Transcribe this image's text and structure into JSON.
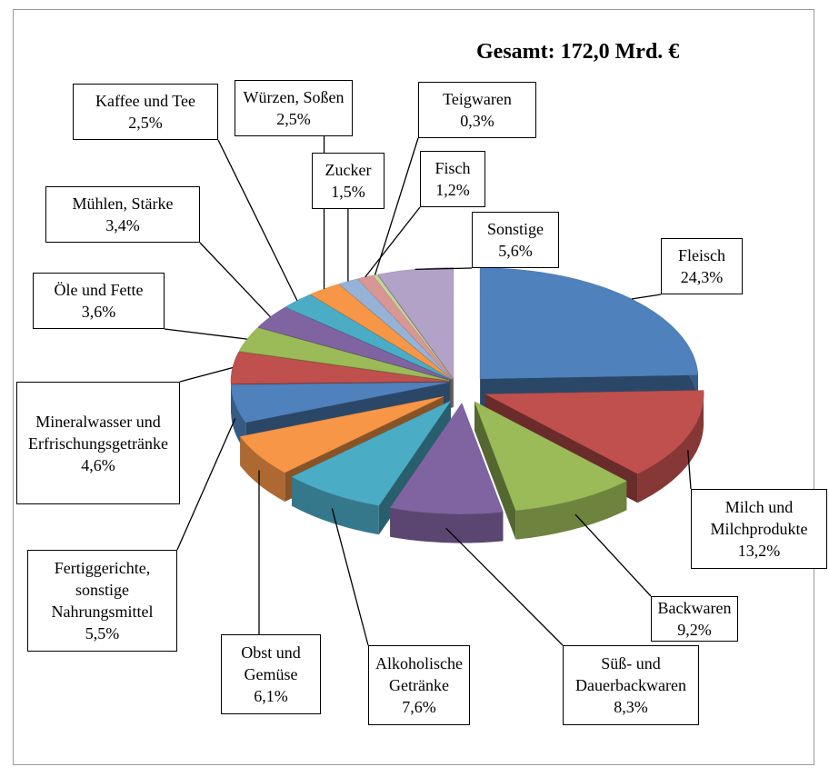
{
  "chart_data": {
    "type": "pie",
    "title": "Gesamt: 172,0 Mrd. €",
    "categories": [
      "Fleisch",
      "Milch und Milchprodukte",
      "Backwaren",
      "Süß- und Dauerbackwaren",
      "Alkoholische Getränke",
      "Obst und Gemüse",
      "Fertiggerichte, sonstige Nahrungsmittel",
      "Mineralwasser und Erfrischungsgetränke",
      "Öle und Fette",
      "Mühlen, Stärke",
      "Kaffee und Tee",
      "Würzen, Soßen",
      "Zucker",
      "Fisch",
      "Teigwaren",
      "Sonstige"
    ],
    "values": [
      24.3,
      13.2,
      9.2,
      8.3,
      7.6,
      6.1,
      5.5,
      4.6,
      3.6,
      3.4,
      2.5,
      2.5,
      1.5,
      1.2,
      0.3,
      5.6
    ],
    "value_labels": [
      "24,3%",
      "13,2%",
      "9,2%",
      "8,3%",
      "7,6%",
      "6,1%",
      "5,5%",
      "4,6%",
      "3,6%",
      "3,4%",
      "2,5%",
      "2,5%",
      "1,5%",
      "1,2%",
      "0,3%",
      "5,6%"
    ],
    "colors": [
      "#4f81bd",
      "#c0504d",
      "#9bbb59",
      "#8064a2",
      "#4bacc6",
      "#f79646",
      "#4f81bd",
      "#c0504d",
      "#9bbb59",
      "#8064a2",
      "#4bacc6",
      "#f79646",
      "#95b3d7",
      "#d99694",
      "#c3d69b",
      "#b3a2c7"
    ]
  }
}
